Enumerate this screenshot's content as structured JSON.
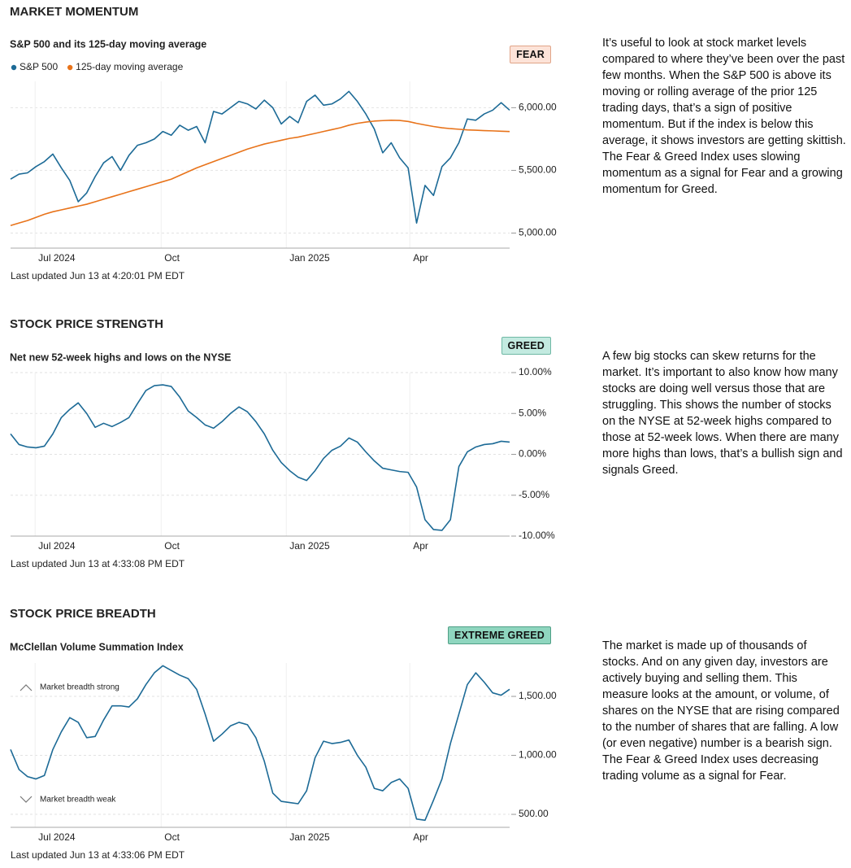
{
  "chart_data": [
    {
      "type": "line",
      "title": "MARKET MOMENTUM",
      "subtitle": "S&P 500 and its 125-day moving average",
      "badge": "FEAR",
      "description": "It’s useful to look at stock market levels compared to where they’ve been over the past few months. When the S&P 500 is above its moving or rolling average of the prior 125 trading days, that’s a sign of positive momentum. But if the index is below this average, it shows investors are getting skittish. The Fear & Greed Index uses slowing momentum as a signal for Fear and a growing momentum for Greed.",
      "footnote": "Last updated Jun 13 at 4:20:01 PM EDT",
      "xlim": [
        0,
        59
      ],
      "xticks": [
        {
          "value": 2.9,
          "label": "Jul 2024"
        },
        {
          "value": 17.8,
          "label": "Oct"
        },
        {
          "value": 32.6,
          "label": "Jan 2025"
        },
        {
          "value": 47.2,
          "label": "Apr"
        }
      ],
      "ylim": [
        4880,
        6210
      ],
      "yticks": [
        {
          "value": 5000,
          "label": "5,000.00"
        },
        {
          "value": 5500,
          "label": "5,500.00"
        },
        {
          "value": 6000,
          "label": "6,000.00"
        }
      ],
      "grid": true,
      "series": [
        {
          "name": "S&P 500",
          "color": "#1c6a96",
          "values": [
            5430,
            5470,
            5480,
            5530,
            5570,
            5630,
            5520,
            5420,
            5250,
            5320,
            5450,
            5560,
            5610,
            5500,
            5620,
            5700,
            5720,
            5750,
            5810,
            5780,
            5860,
            5820,
            5850,
            5720,
            5970,
            5950,
            6000,
            6050,
            6030,
            5990,
            6060,
            6000,
            5870,
            5930,
            5880,
            6050,
            6100,
            6020,
            6030,
            6070,
            6130,
            6050,
            5950,
            5830,
            5640,
            5720,
            5600,
            5520,
            5080,
            5380,
            5300,
            5530,
            5600,
            5720,
            5910,
            5900,
            5950,
            5980,
            6040,
            5980
          ]
        },
        {
          "name": "125-day moving average",
          "color": "#e8731a",
          "values": [
            5060,
            5080,
            5100,
            5125,
            5150,
            5170,
            5185,
            5200,
            5215,
            5230,
            5250,
            5270,
            5290,
            5310,
            5330,
            5350,
            5370,
            5390,
            5410,
            5430,
            5460,
            5490,
            5520,
            5545,
            5570,
            5595,
            5620,
            5645,
            5670,
            5690,
            5710,
            5725,
            5740,
            5755,
            5765,
            5780,
            5795,
            5810,
            5825,
            5840,
            5860,
            5875,
            5885,
            5893,
            5897,
            5900,
            5898,
            5890,
            5875,
            5862,
            5850,
            5840,
            5833,
            5828,
            5823,
            5820,
            5817,
            5815,
            5812,
            5810
          ]
        }
      ]
    },
    {
      "type": "line",
      "title": "STOCK PRICE STRENGTH",
      "subtitle": "Net new 52-week highs and lows on the NYSE",
      "badge": "GREED",
      "description": "A few big stocks can skew returns for the market. It’s important to also know how many stocks are doing well versus those that are struggling. This shows the number of stocks on the NYSE at 52-week highs compared to those at 52-week lows. When there are many more highs than lows, that’s a bullish sign and signals Greed.",
      "footnote": "Last updated Jun 13 at 4:33:08 PM EDT",
      "xlim": [
        0,
        59
      ],
      "xticks": [
        {
          "value": 2.9,
          "label": "Jul 2024"
        },
        {
          "value": 17.8,
          "label": "Oct"
        },
        {
          "value": 32.6,
          "label": "Jan 2025"
        },
        {
          "value": 47.2,
          "label": "Apr"
        }
      ],
      "ylim": [
        -10,
        10
      ],
      "yticks": [
        {
          "value": -10,
          "label": "-10.00%"
        },
        {
          "value": -5,
          "label": "-5.00%"
        },
        {
          "value": 0,
          "label": "0.00%"
        },
        {
          "value": 5,
          "label": "5.00%"
        },
        {
          "value": 10,
          "label": "10.00%"
        }
      ],
      "grid": true,
      "color": "#1c6a96",
      "values": [
        2.5,
        1.2,
        0.9,
        0.8,
        1.0,
        2.5,
        4.5,
        5.5,
        6.3,
        5.0,
        3.3,
        3.8,
        3.4,
        3.9,
        4.5,
        6.2,
        7.8,
        8.4,
        8.5,
        8.3,
        7.0,
        5.3,
        4.5,
        3.6,
        3.2,
        4.0,
        5.0,
        5.8,
        5.2,
        4.0,
        2.5,
        0.5,
        -1.0,
        -2.0,
        -2.8,
        -3.2,
        -2.0,
        -0.5,
        0.5,
        1.0,
        2.0,
        1.5,
        0.3,
        -0.8,
        -1.7,
        -1.9,
        -2.1,
        -2.2,
        -4.0,
        -8.0,
        -9.2,
        -9.3,
        -8.0,
        -1.5,
        0.3,
        0.9,
        1.2,
        1.3,
        1.6,
        1.5
      ]
    },
    {
      "type": "line",
      "title": "STOCK PRICE BREADTH",
      "subtitle": "McClellan Volume Summation Index",
      "badge": "EXTREME GREED",
      "description": "The market is made up of thousands of stocks. And on any given day, investors are actively buying and selling them. This measure looks at the amount, or volume, of shares on the NYSE that are rising compared to the number of shares that are falling. A low (or even negative) number is a bearish sign. The Fear & Greed Index uses decreasing trading volume as a signal for Fear.",
      "footnote": "Last updated Jun 13 at 4:33:06 PM EDT",
      "annotations": [
        "Market breadth strong",
        "Market breadth weak"
      ],
      "xlim": [
        0,
        59
      ],
      "xticks": [
        {
          "value": 2.9,
          "label": "Jul 2024"
        },
        {
          "value": 17.8,
          "label": "Oct"
        },
        {
          "value": 32.6,
          "label": "Jan 2025"
        },
        {
          "value": 47.2,
          "label": "Apr"
        }
      ],
      "ylim": [
        390,
        1783
      ],
      "yticks": [
        {
          "value": 500,
          "label": "500.00"
        },
        {
          "value": 1000,
          "label": "1,000.00"
        },
        {
          "value": 1500,
          "label": "1,500.00"
        }
      ],
      "grid": true,
      "color": "#1c6a96",
      "values": [
        1050,
        880,
        820,
        800,
        830,
        1050,
        1200,
        1320,
        1280,
        1150,
        1160,
        1300,
        1420,
        1420,
        1410,
        1480,
        1600,
        1700,
        1760,
        1720,
        1680,
        1650,
        1560,
        1350,
        1120,
        1180,
        1250,
        1280,
        1260,
        1150,
        950,
        680,
        610,
        600,
        590,
        700,
        980,
        1120,
        1100,
        1110,
        1130,
        1000,
        900,
        720,
        700,
        770,
        800,
        720,
        460,
        450,
        620,
        800,
        1100,
        1350,
        1600,
        1700,
        1620,
        1530,
        1510,
        1560
      ]
    }
  ]
}
